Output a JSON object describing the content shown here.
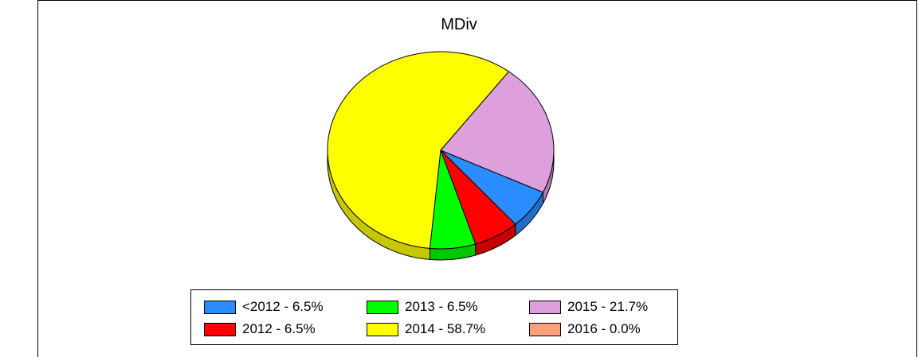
{
  "chart_data": {
    "type": "pie",
    "title": "MDiv",
    "slices": [
      {
        "label": "<2012",
        "legend": "<2012 - 6.5%",
        "value": 6.5,
        "color": "#2B8CFF"
      },
      {
        "label": "2012",
        "legend": "2012 - 6.5%",
        "value": 6.5,
        "color": "#FF0000"
      },
      {
        "label": "2013",
        "legend": "2013 - 6.5%",
        "value": 6.5,
        "color": "#00FF00"
      },
      {
        "label": "2014",
        "legend": "2014 - 58.7%",
        "value": 58.7,
        "color": "#FFFF00"
      },
      {
        "label": "2015",
        "legend": "2015 - 21.7%",
        "value": 21.7,
        "color": "#DDA0DD"
      },
      {
        "label": "2016",
        "legend": "2016 - 0.0%",
        "value": 0.0,
        "color": "#FFA07A"
      }
    ],
    "legend_position": "bottom",
    "style": "3d"
  }
}
